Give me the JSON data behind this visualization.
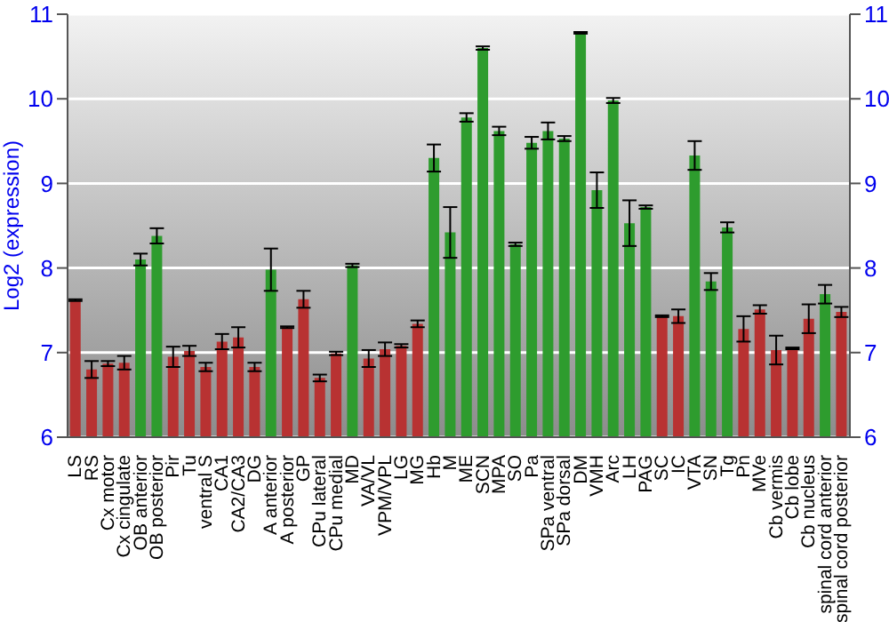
{
  "chart_data": {
    "type": "bar",
    "ylabel": "Log2 (expression)",
    "categories": [
      "LS",
      "RS",
      "Cx motor",
      "Cx cingulate",
      "OB anterior",
      "OB posterior",
      "Pir",
      "Tu",
      "ventral S",
      "CA1",
      "CA2/CA3",
      "DG",
      "A anterior",
      "A posterior",
      "GP",
      "CPu lateral",
      "CPu medial",
      "MD",
      "VA/VL",
      "VPM/VPL",
      "LG",
      "MG",
      "Hb",
      "M",
      "ME",
      "SCN",
      "MPA",
      "SO",
      "Pa",
      "SPa ventral",
      "SPa dorsal",
      "DM",
      "VMH",
      "Arc",
      "LH",
      "PAG",
      "SC",
      "IC",
      "VTA",
      "SN",
      "Tg",
      "Pn",
      "MVe",
      "Cb vermis",
      "Cb lobe",
      "Cb nucleus",
      "spinal cord anterior",
      "spinal cord posterior"
    ],
    "values": [
      7.62,
      6.8,
      6.87,
      6.88,
      8.1,
      8.38,
      6.95,
      7.02,
      6.83,
      7.13,
      7.18,
      6.83,
      7.98,
      7.3,
      7.63,
      6.7,
      6.99,
      8.03,
      6.93,
      7.04,
      7.08,
      7.34,
      9.3,
      8.42,
      9.78,
      10.6,
      9.62,
      8.28,
      9.48,
      9.62,
      9.53,
      10.78,
      8.92,
      9.98,
      8.53,
      8.72,
      7.43,
      7.43,
      9.33,
      7.84,
      8.48,
      7.28,
      7.51,
      7.03,
      7.05,
      7.4,
      7.69,
      7.48
    ],
    "errors": [
      0.01,
      0.1,
      0.03,
      0.08,
      0.07,
      0.09,
      0.12,
      0.06,
      0.05,
      0.09,
      0.12,
      0.05,
      0.25,
      0.01,
      0.1,
      0.04,
      0.02,
      0.02,
      0.1,
      0.08,
      0.02,
      0.04,
      0.16,
      0.3,
      0.05,
      0.02,
      0.05,
      0.02,
      0.07,
      0.1,
      0.03,
      0.01,
      0.21,
      0.03,
      0.27,
      0.02,
      0.01,
      0.08,
      0.17,
      0.1,
      0.06,
      0.15,
      0.05,
      0.17,
      0.01,
      0.17,
      0.11,
      0.06
    ],
    "colors": [
      "#b83232",
      "#b83232",
      "#b83232",
      "#b83232",
      "#2e9c2e",
      "#2e9c2e",
      "#b83232",
      "#b83232",
      "#b83232",
      "#b83232",
      "#b83232",
      "#b83232",
      "#2e9c2e",
      "#b83232",
      "#b83232",
      "#b83232",
      "#b83232",
      "#2e9c2e",
      "#b83232",
      "#b83232",
      "#b83232",
      "#b83232",
      "#2e9c2e",
      "#2e9c2e",
      "#2e9c2e",
      "#2e9c2e",
      "#2e9c2e",
      "#2e9c2e",
      "#2e9c2e",
      "#2e9c2e",
      "#2e9c2e",
      "#2e9c2e",
      "#2e9c2e",
      "#2e9c2e",
      "#2e9c2e",
      "#2e9c2e",
      "#b83232",
      "#b83232",
      "#2e9c2e",
      "#2e9c2e",
      "#2e9c2e",
      "#b83232",
      "#b83232",
      "#b83232",
      "#b83232",
      "#b83232",
      "#2e9c2e",
      "#b83232"
    ],
    "ylim": [
      6,
      11
    ],
    "yticks": [
      6,
      7,
      8,
      9,
      10,
      11
    ],
    "y2lim": [
      6,
      11
    ],
    "y2ticks": [
      6,
      7,
      8,
      9,
      10,
      11
    ],
    "grid": "y"
  }
}
